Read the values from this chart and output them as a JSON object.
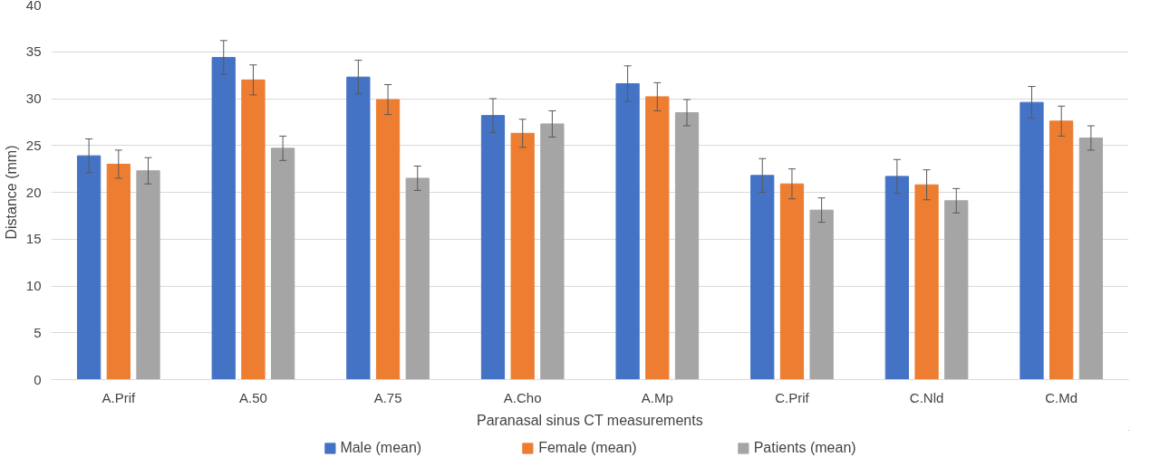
{
  "chart_data": {
    "type": "bar",
    "xlabel": "Paranasal sinus CT measurements",
    "ylabel": "Distance (mm)",
    "categories": [
      "A.Prif",
      "A.50",
      "A.75",
      "A.Cho",
      "A.Mp",
      "C.Prif",
      "C.Nld",
      "C.Md"
    ],
    "series": [
      {
        "name": "Male (mean)",
        "color": "#4472c4",
        "values": [
          23.9,
          34.4,
          32.3,
          28.2,
          31.6,
          21.8,
          21.7,
          29.6
        ],
        "errors": [
          1.8,
          1.8,
          1.8,
          1.8,
          1.9,
          1.8,
          1.8,
          1.7
        ]
      },
      {
        "name": "Female (mean)",
        "color": "#ed7d31",
        "values": [
          23.0,
          32.0,
          29.9,
          26.3,
          30.2,
          20.9,
          20.8,
          27.6
        ],
        "errors": [
          1.5,
          1.6,
          1.6,
          1.5,
          1.5,
          1.6,
          1.6,
          1.6
        ]
      },
      {
        "name": "Patients (mean)",
        "color": "#a5a5a5",
        "values": [
          22.3,
          24.7,
          21.5,
          27.3,
          28.5,
          18.1,
          19.1,
          25.8
        ],
        "errors": [
          1.4,
          1.3,
          1.3,
          1.4,
          1.4,
          1.3,
          1.3,
          1.3
        ]
      }
    ],
    "ylim": [
      0,
      40
    ],
    "yticks": [
      0,
      5,
      10,
      15,
      20,
      25,
      30,
      35,
      40
    ],
    "grid": "y",
    "legend": "bottom"
  }
}
